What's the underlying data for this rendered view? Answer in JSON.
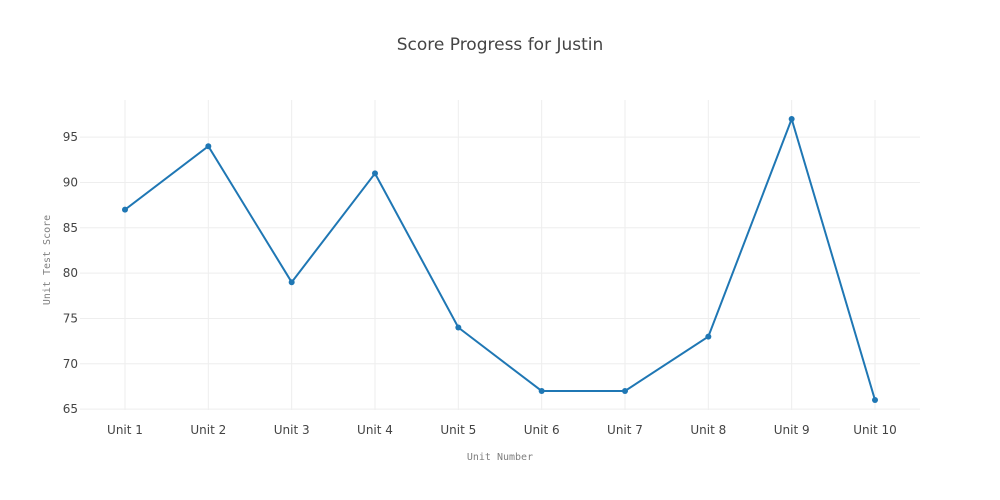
{
  "chart_data": {
    "type": "line",
    "title": "Score Progress for Justin",
    "xlabel": "Unit Number",
    "ylabel": "Unit Test Score",
    "categories": [
      "Unit 1",
      "Unit 2",
      "Unit 3",
      "Unit 4",
      "Unit 5",
      "Unit 6",
      "Unit 7",
      "Unit 8",
      "Unit 9",
      "Unit 10"
    ],
    "series": [
      {
        "values": [
          87,
          94,
          79,
          91,
          74,
          67,
          67,
          73,
          97,
          66
        ]
      }
    ],
    "yticks": [
      65,
      70,
      75,
      80,
      85,
      90,
      95
    ],
    "ylim": [
      64.9,
      99.1
    ],
    "grid": true,
    "legend": "none",
    "colors": {
      "line": "#1f77b4",
      "grid": "#eeeeee",
      "text": "#444444",
      "axis_title": "#7f7f7f"
    }
  }
}
